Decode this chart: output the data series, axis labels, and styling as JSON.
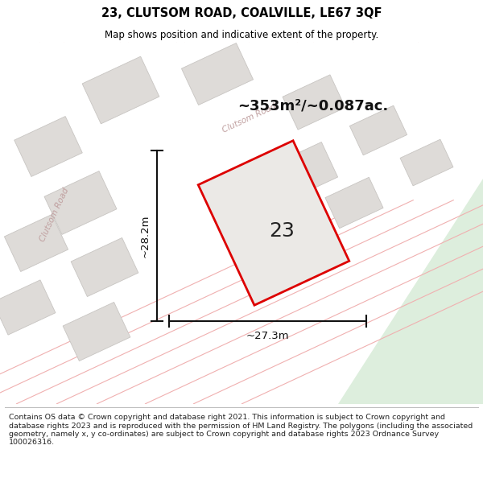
{
  "title_line1": "23, CLUTSOM ROAD, COALVILLE, LE67 3QF",
  "title_line2": "Map shows position and indicative extent of the property.",
  "footer_text": "Contains OS data © Crown copyright and database right 2021. This information is subject to Crown copyright and database rights 2023 and is reproduced with the permission of HM Land Registry. The polygons (including the associated geometry, namely x, y co-ordinates) are subject to Crown copyright and database rights 2023 Ordnance Survey 100026316.",
  "area_label": "~353m²/~0.087ac.",
  "dim_width_label": "~27.3m",
  "dim_height_label": "~28.2m",
  "plot_number": "23",
  "map_bg_color": "#f5f3f0",
  "plot_fill_color": "#ebe9e6",
  "green_area_color": "#ddeedd",
  "plot_outline_color": "#dd0000",
  "road_line_color": "#f0b0b0",
  "block_color": "#dedbd8",
  "block_edge_color": "#c8c5c2",
  "dim_line_color": "#111111",
  "road_label_color": "#c0a0a0",
  "title_bg_color": "#ffffff",
  "footer_bg_color": "#ffffff",
  "area_label_color": "#111111"
}
